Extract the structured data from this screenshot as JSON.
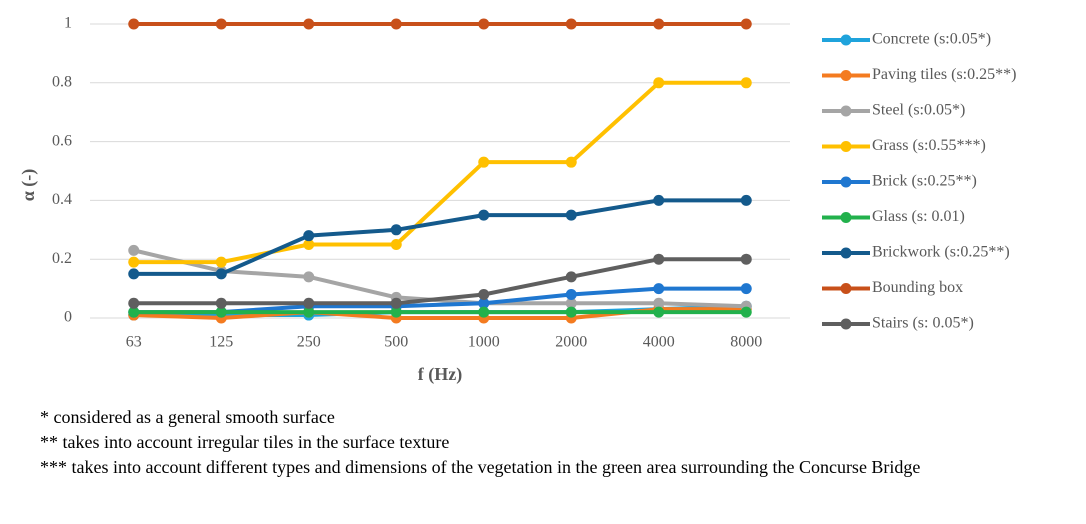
{
  "chart_data": {
    "type": "line",
    "x_label": "f (Hz)",
    "y_label": "α (-)",
    "categories": [
      "63",
      "125",
      "250",
      "500",
      "1000",
      "2000",
      "4000",
      "8000"
    ],
    "ylim": [
      0,
      1
    ],
    "yticks": [
      0,
      0.2,
      0.4,
      0.6,
      0.8,
      1
    ],
    "grid": true,
    "legend": "right",
    "series": [
      {
        "name": "Concrete (s:0.05*)",
        "color": "#1fa3dc",
        "values": [
          0.01,
          0.01,
          0.01,
          0.02,
          0.02,
          0.02,
          0.03,
          0.04
        ]
      },
      {
        "name": "Paving tiles (s:0.25**)",
        "color": "#f47b20",
        "values": [
          0.01,
          0,
          0.02,
          0,
          0,
          0,
          0.03,
          0.03
        ]
      },
      {
        "name": "Steel (s:0.05*)",
        "color": "#a5a5a5",
        "values": [
          0.23,
          0.16,
          0.14,
          0.07,
          0.05,
          0.05,
          0.05,
          0.04
        ]
      },
      {
        "name": "Grass (s:0.55***)",
        "color": "#ffc000",
        "values": [
          0.19,
          0.19,
          0.25,
          0.25,
          0.53,
          0.53,
          0.8,
          0.8
        ]
      },
      {
        "name": "Brick (s:0.25**)",
        "color": "#1f77d0",
        "values": [
          0.02,
          0.02,
          0.04,
          0.04,
          0.05,
          0.08,
          0.1,
          0.1
        ]
      },
      {
        "name": "Glass (s: 0.01)",
        "color": "#22b14c",
        "values": [
          0.02,
          0.02,
          0.02,
          0.02,
          0.02,
          0.02,
          0.02,
          0.02
        ]
      },
      {
        "name": "Brickwork (s:0.25**)",
        "color": "#145a8c",
        "values": [
          0.15,
          0.15,
          0.28,
          0.3,
          0.35,
          0.35,
          0.4,
          0.4
        ]
      },
      {
        "name": "Bounding box",
        "color": "#c8501a",
        "values": [
          1,
          1,
          1,
          1,
          1,
          1,
          1,
          1
        ]
      },
      {
        "name": "Stairs (s: 0.05*)",
        "color": "#5f5f5f",
        "values": [
          0.05,
          0.05,
          0.05,
          0.05,
          0.08,
          0.14,
          0.2,
          0.2
        ]
      }
    ]
  },
  "notes": [
    "* considered as a general smooth surface",
    "** takes into account irregular tiles in the surface texture",
    "*** takes into account different types and dimensions of the vegetation in the green area surrounding the Concurse Bridge"
  ]
}
